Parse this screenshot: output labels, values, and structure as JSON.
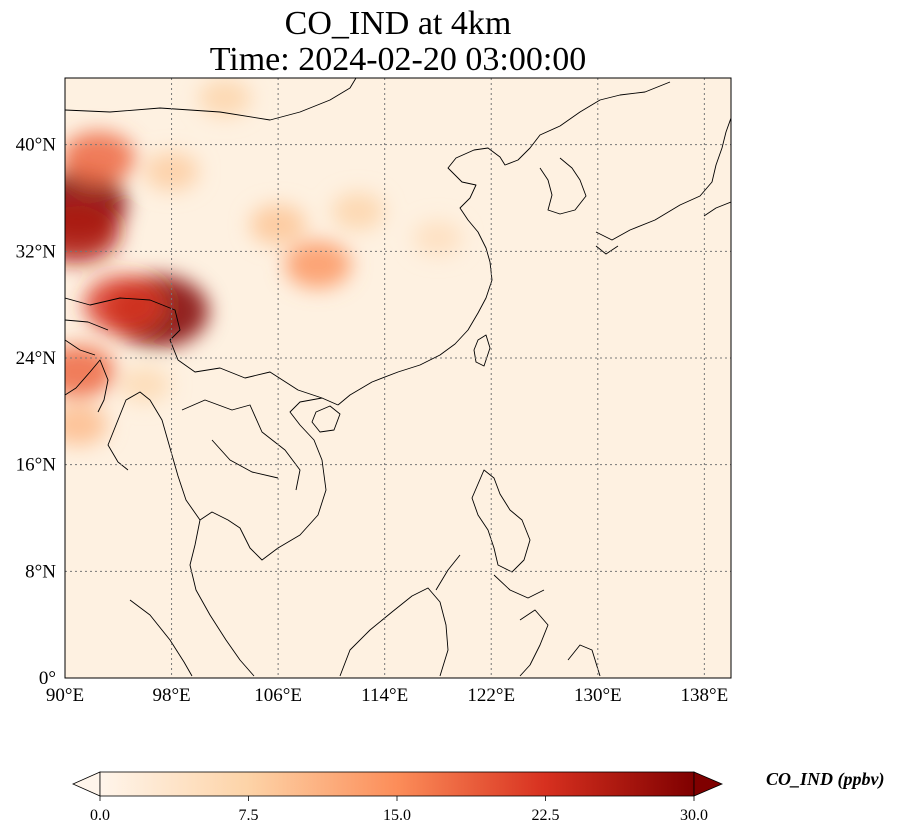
{
  "title": {
    "line1": "CO_IND at 4km",
    "line2": "Time: 2024-02-20 03:00:00"
  },
  "map": {
    "lon_range": [
      90,
      140
    ],
    "lat_range": [
      0,
      45
    ],
    "lon_ticks": [
      {
        "value": 90,
        "label": "90°E"
      },
      {
        "value": 98,
        "label": "98°E"
      },
      {
        "value": 106,
        "label": "106°E"
      },
      {
        "value": 114,
        "label": "114°E"
      },
      {
        "value": 122,
        "label": "122°E"
      },
      {
        "value": 130,
        "label": "130°E"
      },
      {
        "value": 138,
        "label": "138°E"
      }
    ],
    "lat_ticks": [
      {
        "value": 0,
        "label": "0°"
      },
      {
        "value": 8,
        "label": "8°N"
      },
      {
        "value": 16,
        "label": "16°N"
      },
      {
        "value": 24,
        "label": "24°N"
      },
      {
        "value": 32,
        "label": "32°N"
      },
      {
        "value": 40,
        "label": "40°N"
      }
    ],
    "gridlines": true,
    "hotspots": [
      {
        "lon": 97.0,
        "lat": 27.5,
        "value": 32
      },
      {
        "lon": 94.5,
        "lat": 28.0,
        "value": 22
      },
      {
        "lon": 91.0,
        "lat": 35.5,
        "value": 30
      },
      {
        "lon": 90.8,
        "lat": 33.5,
        "value": 26
      },
      {
        "lon": 92.5,
        "lat": 39.0,
        "value": 18
      },
      {
        "lon": 109.0,
        "lat": 31.0,
        "value": 14
      },
      {
        "lon": 106.0,
        "lat": 34.0,
        "value": 9
      },
      {
        "lon": 112.0,
        "lat": 35.0,
        "value": 7
      },
      {
        "lon": 91.0,
        "lat": 23.0,
        "value": 18
      },
      {
        "lon": 91.0,
        "lat": 19.0,
        "value": 10
      },
      {
        "lon": 102.0,
        "lat": 43.5,
        "value": 7
      },
      {
        "lon": 98.0,
        "lat": 38.0,
        "value": 8
      },
      {
        "lon": 118.0,
        "lat": 33.0,
        "value": 5
      },
      {
        "lon": 96.0,
        "lat": 22.0,
        "value": 6
      }
    ]
  },
  "colorbar": {
    "label": "CO_IND (ppbv)",
    "min": 0,
    "max": 30,
    "extend": "both",
    "ticks": [
      {
        "value": 0,
        "label": "0.0"
      },
      {
        "value": 7.5,
        "label": "7.5"
      },
      {
        "value": 15,
        "label": "15.0"
      },
      {
        "value": 22.5,
        "label": "22.5"
      },
      {
        "value": 30,
        "label": "30.0"
      }
    ],
    "colors": [
      "#fff5eb",
      "#fdd3a7",
      "#fc8d59",
      "#d7301f",
      "#7f0000"
    ]
  }
}
